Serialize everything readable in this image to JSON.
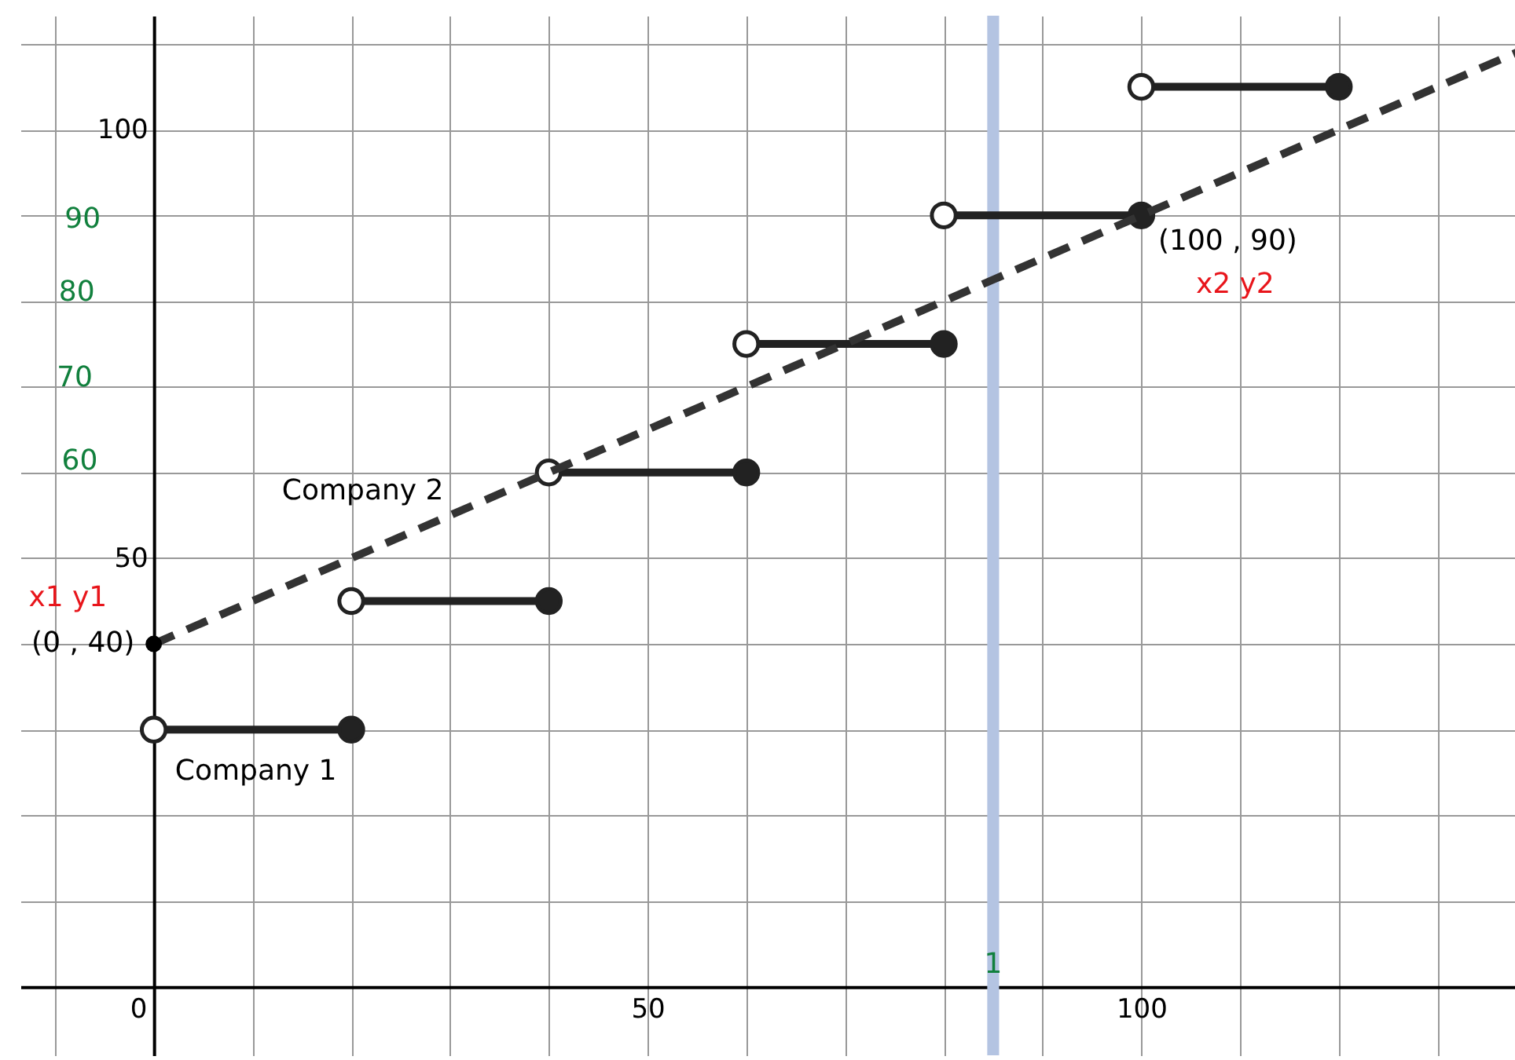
{
  "chart_data": {
    "type": "line",
    "xlim": [
      -13.5,
      138
    ],
    "ylim": [
      -8,
      113.3
    ],
    "xticks": [
      {
        "value": -10,
        "label": null
      },
      {
        "value": 0,
        "label": "0"
      },
      {
        "value": 10,
        "label": null
      },
      {
        "value": 20,
        "label": null
      },
      {
        "value": 30,
        "label": null
      },
      {
        "value": 40,
        "label": null
      },
      50,
      {
        "value": 60,
        "label": null
      },
      {
        "value": 70,
        "label": null
      },
      {
        "value": 80,
        "label": null
      },
      {
        "value": 90,
        "label": null
      },
      100,
      {
        "value": 110,
        "label": null
      },
      {
        "value": 120,
        "label": null
      },
      {
        "value": 130,
        "label": null
      }
    ],
    "yticks": [
      {
        "value": 0,
        "label": null
      },
      {
        "value": 10,
        "label": null
      },
      {
        "value": 20,
        "label": null
      },
      {
        "value": 30,
        "label": null
      },
      {
        "value": 40,
        "label": null
      },
      50,
      {
        "value": 60,
        "label": null
      },
      {
        "value": 70,
        "label": null
      },
      {
        "value": 80,
        "label": null
      },
      {
        "value": 90,
        "label": null
      },
      100,
      {
        "value": 110,
        "label": null
      }
    ],
    "grid": true,
    "series": [
      {
        "name": "Company 1",
        "color": "#222222",
        "marker": "circle",
        "line_style": "solid",
        "x": [
          0,
          20,
          20,
          40,
          40,
          60,
          60,
          80,
          80,
          100,
          100,
          120
        ],
        "values": [
          30,
          30,
          45,
          45,
          60,
          60,
          75,
          75,
          90,
          90,
          105,
          105
        ]
      },
      {
        "name": "Company 2",
        "color": "#333333",
        "marker": "none",
        "line_style": "dashed",
        "x": [
          0,
          138
        ],
        "values": [
          40,
          109
        ]
      },
      {
        "type": "scatter",
        "color": "#000000",
        "marker": "circle",
        "x": [
          0
        ],
        "values": [
          40
        ]
      }
    ],
    "bands": [
      {
        "axis": "x",
        "from": 84.4,
        "to": 85.6,
        "color": "#b4c4e2"
      }
    ],
    "annotations": [
      {
        "text": "(0 , 40)",
        "x": 0,
        "y": 40
      },
      {
        "text": "(100 , 90)",
        "x": 100,
        "y": 90
      },
      "x1 y1",
      "x2 y2",
      "90",
      "80",
      "70",
      "60",
      "1"
    ]
  }
}
